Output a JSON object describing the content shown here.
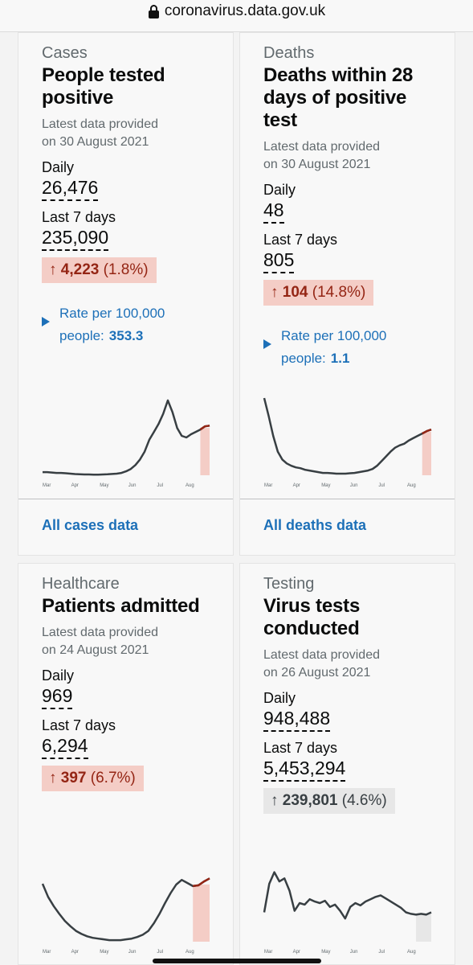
{
  "browser": {
    "url": "coronavirus.data.gov.uk"
  },
  "cards": {
    "cases": {
      "category": "Cases",
      "title_line1": "People tested",
      "title_line2": "positive",
      "latest_line1": "Latest data provided",
      "latest_line2": "on 30 August 2021",
      "daily_label": "Daily",
      "daily_value": "26,476",
      "week_label": "Last 7 days",
      "week_value": "235,090",
      "change_arrow": "↑",
      "change_value": "4,223",
      "change_pct": "(1.8%)",
      "rate_line1": "Rate per 100,000",
      "rate_line2": "people:",
      "rate_value": "353.3",
      "link": "All cases data",
      "chart_color": "#383f43",
      "highlight_color": "#f4cdc6",
      "trend_color": "#942514"
    },
    "deaths": {
      "category": "Deaths",
      "title_line1": "Deaths within 28",
      "title_line2": "days of positive",
      "title_line3": "test",
      "latest_line1": "Latest data provided",
      "latest_line2": "on 30 August 2021",
      "daily_label": "Daily",
      "daily_value": "48",
      "week_label": "Last 7 days",
      "week_value": "805",
      "change_arrow": "↑",
      "change_value": "104",
      "change_pct": "(14.8%)",
      "rate_line1": "Rate per 100,000",
      "rate_line2": "people:",
      "rate_value": "1.1",
      "link": "All deaths data"
    },
    "healthcare": {
      "category": "Healthcare",
      "title_line1": "Patients admitted",
      "latest_line1": "Latest data provided",
      "latest_line2": "on 24 August 2021",
      "daily_label": "Daily",
      "daily_value": "969",
      "week_label": "Last 7 days",
      "week_value": "6,294",
      "change_arrow": "↑",
      "change_value": "397",
      "change_pct": "(6.7%)"
    },
    "testing": {
      "category": "Testing",
      "title_line1": "Virus tests",
      "title_line2": "conducted",
      "latest_line1": "Latest data provided",
      "latest_line2": "on 26 August 2021",
      "daily_label": "Daily",
      "daily_value": "948,488",
      "week_label": "Last 7 days",
      "week_value": "5,453,294",
      "change_arrow": "↑",
      "change_value": "239,801",
      "change_pct": "(4.6%)",
      "neutral_color": "#e7e7e7"
    }
  },
  "chart_data": [
    {
      "type": "line",
      "name_ref": "cases",
      "x_ticks": [
        "Mar",
        "Apr",
        "May",
        "Jun",
        "Jul",
        "Aug"
      ],
      "y": [
        0.04,
        0.04,
        0.035,
        0.03,
        0.03,
        0.025,
        0.02,
        0.015,
        0.012,
        0.01,
        0.01,
        0.008,
        0.008,
        0.01,
        0.012,
        0.016,
        0.02,
        0.03,
        0.05,
        0.08,
        0.13,
        0.2,
        0.3,
        0.45,
        0.55,
        0.65,
        0.78,
        0.95,
        0.8,
        0.6,
        0.5,
        0.48,
        0.52,
        0.55,
        0.58,
        0.62,
        0.63
      ],
      "recent_from_index": 34
    },
    {
      "type": "line",
      "name_ref": "deaths",
      "x_ticks": [
        "Mar",
        "Apr",
        "May",
        "Jun",
        "Jul",
        "Aug"
      ],
      "y": [
        0.98,
        0.75,
        0.5,
        0.3,
        0.2,
        0.15,
        0.12,
        0.1,
        0.09,
        0.07,
        0.06,
        0.05,
        0.04,
        0.03,
        0.03,
        0.025,
        0.02,
        0.02,
        0.02,
        0.025,
        0.03,
        0.04,
        0.05,
        0.06,
        0.08,
        0.12,
        0.18,
        0.24,
        0.3,
        0.35,
        0.38,
        0.4,
        0.44,
        0.47,
        0.5,
        0.53,
        0.56,
        0.58
      ],
      "recent_from_index": 35
    },
    {
      "type": "line",
      "name_ref": "healthcare",
      "x_ticks": [
        "Mar",
        "Apr",
        "May",
        "Jun",
        "Jul",
        "Aug"
      ],
      "y": [
        0.75,
        0.58,
        0.46,
        0.36,
        0.27,
        0.2,
        0.14,
        0.1,
        0.07,
        0.05,
        0.04,
        0.03,
        0.02,
        0.02,
        0.02,
        0.03,
        0.04,
        0.06,
        0.09,
        0.14,
        0.24,
        0.36,
        0.5,
        0.63,
        0.74,
        0.8,
        0.76,
        0.72,
        0.73,
        0.78,
        0.82
      ],
      "recent_from_index": 27
    },
    {
      "type": "line",
      "name_ref": "testing",
      "x_ticks": [
        "Mar",
        "Apr",
        "May",
        "Jun",
        "Jul",
        "Aug"
      ],
      "y": [
        0.38,
        0.75,
        0.9,
        0.78,
        0.82,
        0.66,
        0.4,
        0.5,
        0.48,
        0.55,
        0.52,
        0.5,
        0.53,
        0.45,
        0.48,
        0.4,
        0.3,
        0.45,
        0.5,
        0.47,
        0.52,
        0.55,
        0.58,
        0.6,
        0.56,
        0.52,
        0.48,
        0.44,
        0.38,
        0.36,
        0.35,
        0.36,
        0.35,
        0.38
      ],
      "recent_from_index": 30
    }
  ]
}
